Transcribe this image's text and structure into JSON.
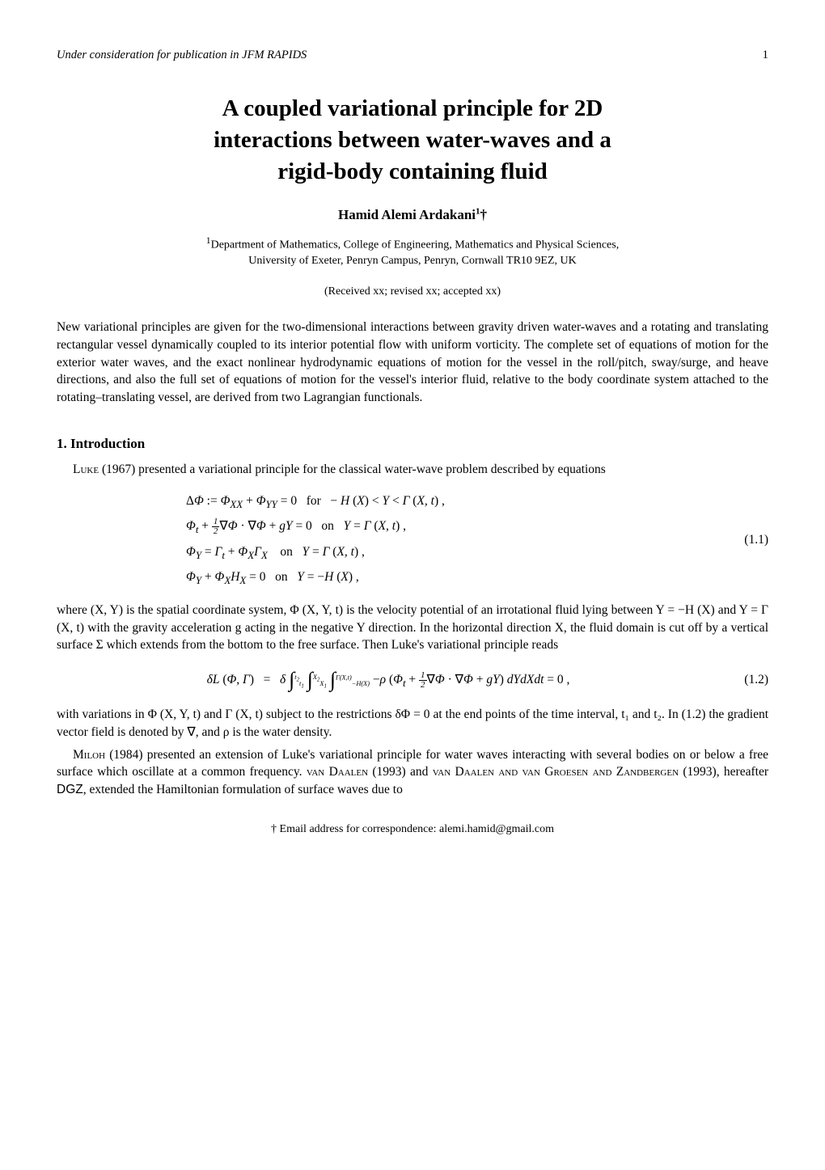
{
  "header": {
    "journal": "Under consideration for publication in JFM RAPIDS",
    "pageNumber": "1"
  },
  "title": {
    "line1": "A coupled variational principle for 2D",
    "line2": "interactions between water-waves and a",
    "line3": "rigid-body containing fluid"
  },
  "author": {
    "name": "Hamid Alemi Ardakani",
    "supMark": "1",
    "dagger": "†"
  },
  "affiliation": {
    "supMark": "1",
    "line1": "Department of Mathematics, College of Engineering, Mathematics and Physical Sciences,",
    "line2": "University of Exeter, Penryn Campus, Penryn, Cornwall TR10 9EZ, UK"
  },
  "received": "(Received xx; revised xx; accepted xx)",
  "abstract": "New variational principles are given for the two-dimensional interactions between gravity driven water-waves and a rotating and translating rectangular vessel dynamically coupled to its interior potential flow with uniform vorticity. The complete set of equations of motion for the exterior water waves, and the exact nonlinear hydrodynamic equations of motion for the vessel in the roll/pitch, sway/surge, and heave directions, and also the full set of equations of motion for the vessel's interior fluid, relative to the body coordinate system attached to the rotating–translating vessel, are derived from two Lagrangian functionals.",
  "section1": {
    "heading": "1. Introduction",
    "para1_pre": "Luke",
    "para1_post": " (1967) presented a variational principle for the classical water-wave problem described by equations",
    "eq1_1": {
      "number": "(1.1)",
      "line1": "ΔΦ := Φ_XX + Φ_YY = 0   for   − H (X) < Y < Γ (X, t) ,",
      "line2": "Φ_t + ½∇Φ · ∇Φ + gY = 0   on   Y = Γ (X, t) ,",
      "line3": "Φ_Y = Γ_t + Φ_X Γ_X   on   Y = Γ (X, t) ,",
      "line4": "Φ_Y + Φ_X H_X = 0   on   Y = −H (X) ,"
    },
    "para2": "where (X, Y) is the spatial coordinate system, Φ (X, Y, t) is the velocity potential of an irrotational fluid lying between Y = −H (X) and Y = Γ (X, t) with the gravity acceleration g acting in the negative Y direction. In the horizontal direction X, the fluid domain is cut off by a vertical surface Σ which extends from the bottom to the free surface. Then Luke's variational principle reads",
    "eq1_2": {
      "number": "(1.2)",
      "expr": "δL (Φ, Γ)   =   δ ∫_{t₁}^{t₂} ∫_{X₁}^{X₂} ∫_{−H(X)}^{Γ(X,t)} −ρ (Φ_t + ½∇Φ · ∇Φ + gY) dY dX dt = 0 ,"
    },
    "para3": "with variations in Φ (X, Y, t) and Γ (X, t) subject to the restrictions δΦ = 0 at the end points of the time interval, t₁ and t₂. In (1.2) the gradient vector field is denoted by ∇, and ρ is the water density.",
    "para4_pre": "Miloh",
    "para4_mid1": " (1984) presented an extension of Luke's variational principle for water waves interacting with several bodies on or below a free surface which oscillate at a common frequency. ",
    "para4_auth2": "van Daalen",
    "para4_mid2": " (1993) and ",
    "para4_auth3": "van Daalen and van Groesen and Zandbergen",
    "para4_mid3": " (1993), hereafter ",
    "para4_dgz": "DGZ",
    "para4_post": ", extended the Hamiltonian formulation of surface waves due to"
  },
  "footnote": {
    "dagger": "†",
    "text": " Email address for correspondence: alemi.hamid@gmail.com"
  }
}
